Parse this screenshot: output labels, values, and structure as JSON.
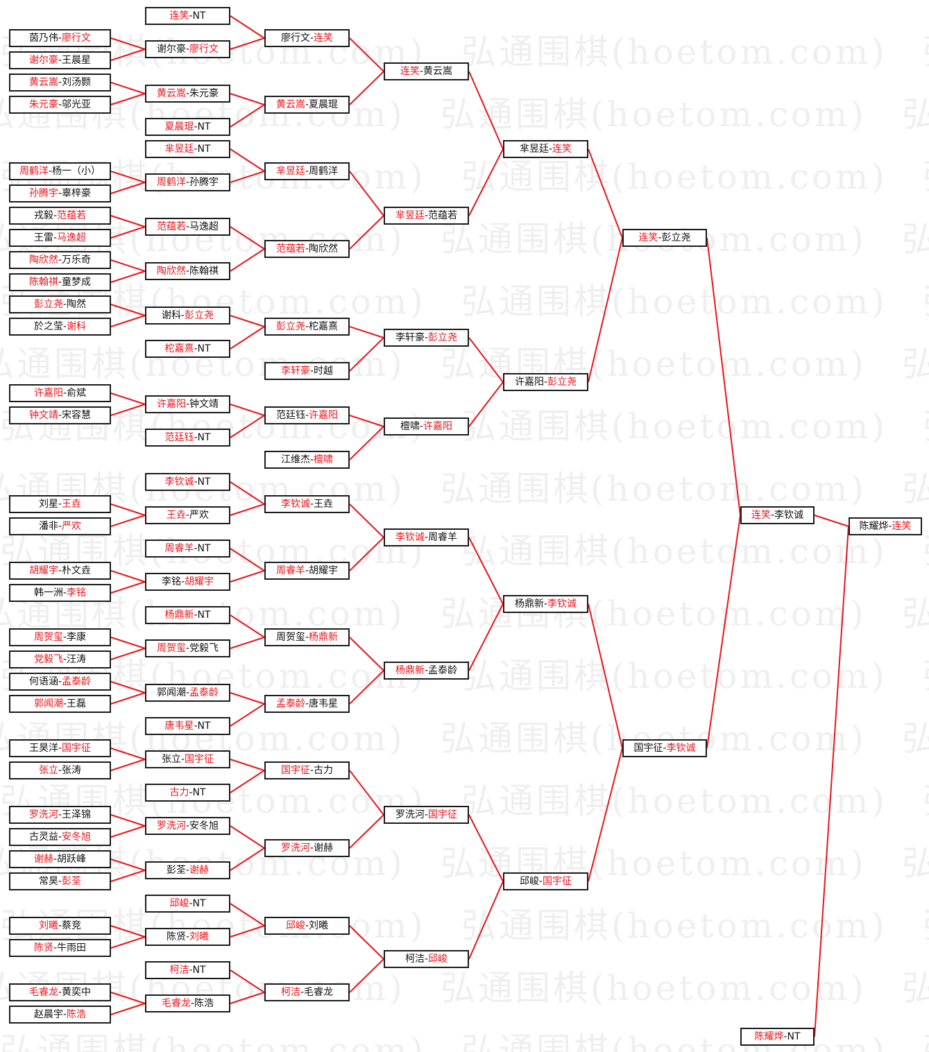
{
  "watermark": "弘通围棋(hoetom.com)",
  "colors": {
    "winner_text": "#e8141b",
    "connector": "#e8141b",
    "box_border": "#1a1a1a",
    "watermark": "#efefef"
  },
  "rounds": [
    {
      "matches": [
        {
          "players": [
            "茵乃伟",
            "廖行文"
          ],
          "winner": 1,
          "next": 1
        },
        {
          "players": [
            "谢尔豪",
            "王晨星"
          ],
          "winner": 0,
          "next": 1
        },
        {
          "players": [
            "黄云嵩",
            "刘汤颢"
          ],
          "winner": 0,
          "next": 2
        },
        {
          "players": [
            "朱元豪",
            "邬光亚"
          ],
          "winner": 0,
          "next": 2
        },
        {
          "players": [
            "周鹤洋",
            "杨一（小）"
          ],
          "winner": 0,
          "next": 5
        },
        {
          "players": [
            "孙腾宇",
            "辜梓豪"
          ],
          "winner": 0,
          "next": 5
        },
        {
          "players": [
            "戎毅",
            "范蕴若"
          ],
          "winner": 1,
          "next": 6
        },
        {
          "players": [
            "王雷",
            "马逸超"
          ],
          "winner": 1,
          "next": 6
        },
        {
          "players": [
            "陶欣然",
            "万乐奇"
          ],
          "winner": 0,
          "next": 7
        },
        {
          "players": [
            "陈翰祺",
            "童梦成"
          ],
          "winner": 0,
          "next": 7
        },
        {
          "players": [
            "彭立尧",
            "陶然"
          ],
          "winner": 0,
          "next": 8
        },
        {
          "players": [
            "於之莹",
            "谢科"
          ],
          "winner": 1,
          "next": 8
        },
        {
          "players": [
            "许嘉阳",
            "俞斌"
          ],
          "winner": 0,
          "next": 10
        },
        {
          "players": [
            "钟文靖",
            "宋容慧"
          ],
          "winner": 0,
          "next": 10
        },
        {
          "players": [
            "刘星",
            "王垚"
          ],
          "winner": 1,
          "next": 13
        },
        {
          "players": [
            "潘非",
            "严欢"
          ],
          "winner": 1,
          "next": 13
        },
        {
          "players": [
            "胡耀宇",
            "朴文垚"
          ],
          "winner": 0,
          "next": 15
        },
        {
          "players": [
            "韩一洲",
            "李铭"
          ],
          "winner": 1,
          "next": 15
        },
        {
          "players": [
            "周贺玺",
            "李康"
          ],
          "winner": 0,
          "next": 17
        },
        {
          "players": [
            "党毅飞",
            "汪涛"
          ],
          "winner": 0,
          "next": 17
        },
        {
          "players": [
            "何语涵",
            "孟泰龄"
          ],
          "winner": 1,
          "next": 18
        },
        {
          "players": [
            "郭闻潮",
            "王磊"
          ],
          "winner": 0,
          "next": 18
        },
        {
          "players": [
            "王昊洋",
            "国宇征"
          ],
          "winner": 1,
          "next": 20
        },
        {
          "players": [
            "张立",
            "张涛"
          ],
          "winner": 0,
          "next": 20
        },
        {
          "players": [
            "罗洗河",
            "王泽锦"
          ],
          "winner": 0,
          "next": 22
        },
        {
          "players": [
            "古灵益",
            "安冬旭"
          ],
          "winner": 1,
          "next": 22
        },
        {
          "players": [
            "谢赫",
            "胡跃峰"
          ],
          "winner": 0,
          "next": 23
        },
        {
          "players": [
            "常昊",
            "彭荃"
          ],
          "winner": 1,
          "next": 23
        },
        {
          "players": [
            "刘曦",
            "蔡竞"
          ],
          "winner": 0,
          "next": 25
        },
        {
          "players": [
            "陈贤",
            "牛雨田"
          ],
          "winner": 0,
          "next": 25
        },
        {
          "players": [
            "毛睿龙",
            "黄奕中"
          ],
          "winner": 0,
          "next": 27
        },
        {
          "players": [
            "赵晨宇",
            "陈浩"
          ],
          "winner": 1,
          "next": 27
        }
      ]
    },
    {
      "matches": [
        {
          "players": [
            "连笑",
            "NT"
          ],
          "winner": 0,
          "next": 0
        },
        {
          "players": [
            "谢尔豪",
            "廖行文"
          ],
          "winner": 1,
          "next": 0
        },
        {
          "players": [
            "黄云嵩",
            "朱元豪"
          ],
          "winner": 0,
          "next": 1
        },
        {
          "players": [
            "夏晨琨",
            "NT"
          ],
          "winner": 0,
          "next": 1
        },
        {
          "players": [
            "芈昱廷",
            "NT"
          ],
          "winner": 0,
          "next": 2
        },
        {
          "players": [
            "周鹤洋",
            "孙腾宇"
          ],
          "winner": 0,
          "next": 2
        },
        {
          "players": [
            "范蕴若",
            "马逸超"
          ],
          "winner": 0,
          "next": 3
        },
        {
          "players": [
            "陶欣然",
            "陈翰祺"
          ],
          "winner": 0,
          "next": 3
        },
        {
          "players": [
            "谢科",
            "彭立尧"
          ],
          "winner": 1,
          "next": 4
        },
        {
          "players": [
            "柁嘉熹",
            "NT"
          ],
          "winner": 0,
          "next": 4
        },
        {
          "players": [
            "许嘉阳",
            "钟文靖"
          ],
          "winner": 0,
          "next": 6
        },
        {
          "players": [
            "范廷钰",
            "NT"
          ],
          "winner": 0,
          "next": 6
        },
        {
          "players": [
            "李钦诚",
            "NT"
          ],
          "winner": 0,
          "next": 8
        },
        {
          "players": [
            "王垚",
            "严欢"
          ],
          "winner": 0,
          "next": 8
        },
        {
          "players": [
            "周睿羊",
            "NT"
          ],
          "winner": 0,
          "next": 9
        },
        {
          "players": [
            "李铭",
            "胡耀宇"
          ],
          "winner": 1,
          "next": 9
        },
        {
          "players": [
            "杨鼎新",
            "NT"
          ],
          "winner": 0,
          "next": 10
        },
        {
          "players": [
            "周贺玺",
            "党毅飞"
          ],
          "winner": 0,
          "next": 10
        },
        {
          "players": [
            "郭闻潮",
            "孟泰龄"
          ],
          "winner": 1,
          "next": 11
        },
        {
          "players": [
            "唐韦星",
            "NT"
          ],
          "winner": 0,
          "next": 11
        },
        {
          "players": [
            "张立",
            "国宇征"
          ],
          "winner": 1,
          "next": 12
        },
        {
          "players": [
            "古力",
            "NT"
          ],
          "winner": 0,
          "next": 12
        },
        {
          "players": [
            "罗洗河",
            "安冬旭"
          ],
          "winner": 0,
          "next": 13
        },
        {
          "players": [
            "彭荃",
            "谢赫"
          ],
          "winner": 1,
          "next": 13
        },
        {
          "players": [
            "邱峻",
            "NT"
          ],
          "winner": 0,
          "next": 14
        },
        {
          "players": [
            "陈贤",
            "刘曦"
          ],
          "winner": 1,
          "next": 14
        },
        {
          "players": [
            "柯洁",
            "NT"
          ],
          "winner": 0,
          "next": 15
        },
        {
          "players": [
            "毛睿龙",
            "陈浩"
          ],
          "winner": 0,
          "next": 15
        }
      ]
    },
    {
      "matches": [
        {
          "players": [
            "廖行文",
            "连笑"
          ],
          "winner": 1,
          "next": 0
        },
        {
          "players": [
            "黄云嵩",
            "夏晨琨"
          ],
          "winner": 0,
          "next": 0
        },
        {
          "players": [
            "芈昱廷",
            "周鹤洋"
          ],
          "winner": 0,
          "next": 1
        },
        {
          "players": [
            "范蕴若",
            "陶欣然"
          ],
          "winner": 0,
          "next": 1
        },
        {
          "players": [
            "彭立尧",
            "柁嘉熹"
          ],
          "winner": 0,
          "next": 2
        },
        {
          "players": [
            "李轩豪",
            "时越"
          ],
          "winner": 0,
          "next": 2
        },
        {
          "players": [
            "范廷钰",
            "许嘉阳"
          ],
          "winner": 1,
          "next": 3
        },
        {
          "players": [
            "江维杰",
            "檀啸"
          ],
          "winner": 1,
          "next": 3
        },
        {
          "players": [
            "李钦诚",
            "王垚"
          ],
          "winner": 0,
          "next": 4
        },
        {
          "players": [
            "周睿羊",
            "胡耀宇"
          ],
          "winner": 0,
          "next": 4
        },
        {
          "players": [
            "周贺玺",
            "杨鼎新"
          ],
          "winner": 1,
          "next": 5
        },
        {
          "players": [
            "孟泰龄",
            "唐韦星"
          ],
          "winner": 0,
          "next": 5
        },
        {
          "players": [
            "国宇征",
            "古力"
          ],
          "winner": 0,
          "next": 6
        },
        {
          "players": [
            "罗洗河",
            "谢赫"
          ],
          "winner": 0,
          "next": 6
        },
        {
          "players": [
            "邱峻",
            "刘曦"
          ],
          "winner": 0,
          "next": 7
        },
        {
          "players": [
            "柯洁",
            "毛睿龙"
          ],
          "winner": 0,
          "next": 7
        }
      ]
    },
    {
      "matches": [
        {
          "players": [
            "连笑",
            "黄云嵩"
          ],
          "winner": 0,
          "next": 0
        },
        {
          "players": [
            "芈昱廷",
            "范蕴若"
          ],
          "winner": 0,
          "next": 0
        },
        {
          "players": [
            "李轩豪",
            "彭立尧"
          ],
          "winner": 1,
          "next": 1
        },
        {
          "players": [
            "檀啸",
            "许嘉阳"
          ],
          "winner": 1,
          "next": 1
        },
        {
          "players": [
            "李钦诚",
            "周睿羊"
          ],
          "winner": 0,
          "next": 2
        },
        {
          "players": [
            "杨鼎新",
            "孟泰龄"
          ],
          "winner": 0,
          "next": 2
        },
        {
          "players": [
            "罗洗河",
            "国宇征"
          ],
          "winner": 1,
          "next": 3
        },
        {
          "players": [
            "柯洁",
            "邱峻"
          ],
          "winner": 1,
          "next": 3
        }
      ]
    },
    {
      "matches": [
        {
          "players": [
            "芈昱廷",
            "连笑"
          ],
          "winner": 1,
          "next": 0
        },
        {
          "players": [
            "许嘉阳",
            "彭立尧"
          ],
          "winner": 1,
          "next": 0
        },
        {
          "players": [
            "杨鼎新",
            "李钦诚"
          ],
          "winner": 1,
          "next": 1
        },
        {
          "players": [
            "邱峻",
            "国宇征"
          ],
          "winner": 1,
          "next": 1
        }
      ]
    },
    {
      "matches": [
        {
          "players": [
            "连笑",
            "彭立尧"
          ],
          "winner": 0,
          "next": 0
        },
        {
          "players": [
            "国宇征",
            "李钦诚"
          ],
          "winner": 1,
          "next": 0
        }
      ]
    },
    {
      "matches": [
        {
          "players": [
            "连笑",
            "李钦诚"
          ],
          "winner": 0,
          "next": 0
        },
        {
          "players": [
            "陈耀烨",
            "NT"
          ],
          "winner": 0,
          "next": 0
        }
      ]
    },
    {
      "matches": [
        {
          "players": [
            "陈耀烨",
            "连笑"
          ],
          "winner": 1
        }
      ]
    }
  ]
}
